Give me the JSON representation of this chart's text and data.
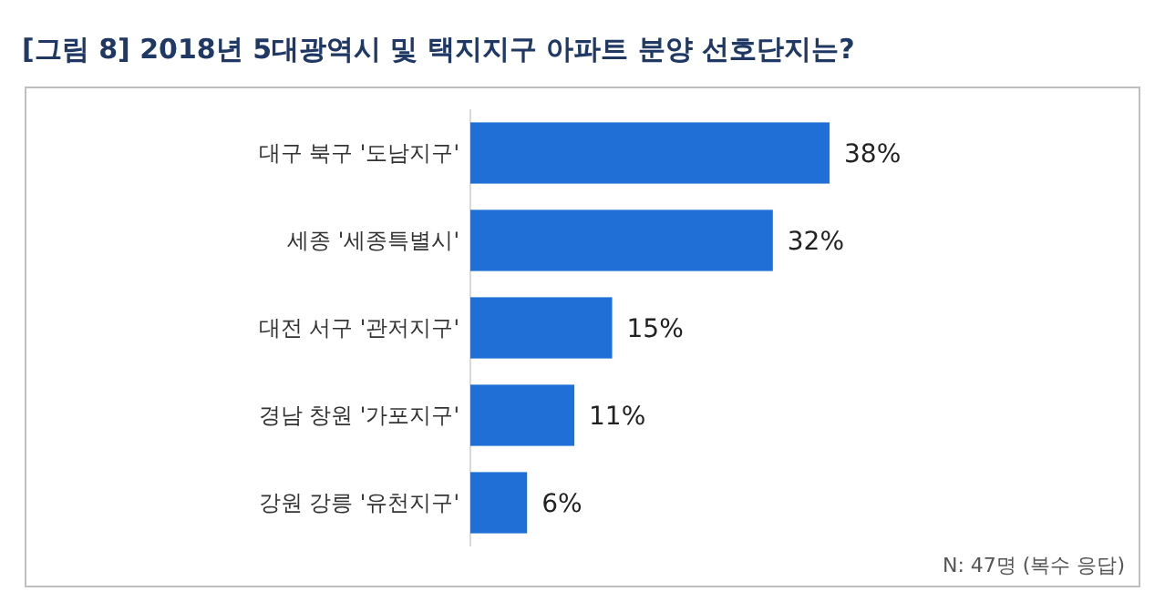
{
  "chart_data": {
    "type": "bar",
    "orientation": "horizontal",
    "title": "[그림 8] 2018년 5대광역시 및 택지지구 아파트 분양 선호단지는?",
    "categories": [
      "대구 북구 '도남지구'",
      "세종 '세종특별시'",
      "대전 서구 '관저지구'",
      "경남 창원 '가포지구'",
      "강원 강릉 '유천지구'"
    ],
    "values": [
      38,
      32,
      15,
      11,
      6
    ],
    "value_labels": [
      "38%",
      "32%",
      "15%",
      "11%",
      "6%"
    ],
    "color": "#1f6fd6",
    "annotations": [
      "N: 47명 (복수 응답)"
    ]
  }
}
